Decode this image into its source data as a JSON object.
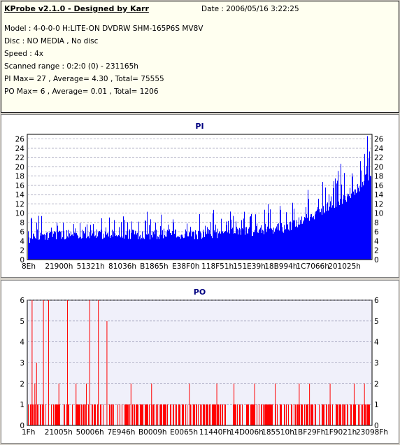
{
  "info": {
    "title": "KProbe v2.1.0 - Designed by Karr",
    "date": "Date : 2006/05/16 3:22:25",
    "lines": [
      "Model : 4-0-0-0 H:LITE-ON DVDRW SHM-165P6S MV8V",
      "Disc : NO MEDIA , No disc",
      "Speed : 4x",
      "Scanned range : 0:2:0 (0) - 231165h",
      "PI Max= 27 , Average= 4.30 , Total= 75555",
      "PO Max= 6 , Average= 0.01 , Total= 1206"
    ]
  },
  "colors": {
    "pi_bar": "#0000ff",
    "po_bar": "#ff0000",
    "pi_bg": "#ffffff",
    "po_bg": "#f0f0fa",
    "grid": "#8080a0",
    "title": "#000080"
  },
  "chart_data": [
    {
      "type": "bar",
      "title": "PI",
      "ylim": [
        0,
        27
      ],
      "y_ticks": [
        0,
        2,
        4,
        6,
        8,
        10,
        12,
        14,
        16,
        18,
        20,
        22,
        24,
        26
      ],
      "x_tick_labels": [
        "8Eh",
        "21900h",
        "51321h",
        "81036h",
        "B1865h",
        "E38F0h",
        "118F51h",
        "151E39h",
        "18B994h",
        "1C7066h",
        "201025h"
      ],
      "grid": true,
      "profile_x": [
        0,
        0.1,
        0.2,
        0.3,
        0.4,
        0.5,
        0.6,
        0.7,
        0.75,
        0.8,
        0.85,
        0.9,
        0.95,
        1.0
      ],
      "profile_base": [
        4,
        5,
        5,
        5,
        5,
        5,
        5.5,
        6,
        6.5,
        8,
        10,
        12,
        14,
        18
      ],
      "profile_spike": [
        5,
        4,
        4,
        4,
        4,
        5,
        5,
        6,
        6,
        7,
        7,
        7,
        8,
        9
      ],
      "series": [
        {
          "name": "PI",
          "color": "#0000ff"
        }
      ]
    },
    {
      "type": "bar",
      "title": "PO",
      "ylim": [
        0,
        6
      ],
      "y_ticks": [
        0,
        1,
        2,
        3,
        4,
        5,
        6
      ],
      "x_tick_labels": [
        "1Fh",
        "21005h",
        "50006h",
        "7E946h",
        "B0009h",
        "E0065h",
        "11440Fh",
        "14D006h",
        "185510h",
        "1BF29Fh",
        "1F9021h",
        "23098Fh"
      ],
      "grid": true,
      "spikes": [
        {
          "x": 0.012,
          "v": 6
        },
        {
          "x": 0.025,
          "v": 3
        },
        {
          "x": 0.045,
          "v": 6
        },
        {
          "x": 0.06,
          "v": 6
        },
        {
          "x": 0.115,
          "v": 6
        },
        {
          "x": 0.18,
          "v": 6
        },
        {
          "x": 0.205,
          "v": 6
        },
        {
          "x": 0.23,
          "v": 5
        },
        {
          "x": 0.02,
          "v": 2
        },
        {
          "x": 0.09,
          "v": 2
        },
        {
          "x": 0.14,
          "v": 2
        },
        {
          "x": 0.17,
          "v": 2
        },
        {
          "x": 0.3,
          "v": 2
        },
        {
          "x": 0.36,
          "v": 2
        },
        {
          "x": 0.47,
          "v": 2
        },
        {
          "x": 0.55,
          "v": 2
        },
        {
          "x": 0.6,
          "v": 2
        },
        {
          "x": 0.66,
          "v": 2
        },
        {
          "x": 0.72,
          "v": 2
        },
        {
          "x": 0.79,
          "v": 2
        },
        {
          "x": 0.82,
          "v": 2
        },
        {
          "x": 0.88,
          "v": 2
        },
        {
          "x": 0.95,
          "v": 2
        },
        {
          "x": 0.98,
          "v": 2
        }
      ],
      "series": [
        {
          "name": "PO",
          "color": "#ff0000"
        }
      ]
    }
  ]
}
